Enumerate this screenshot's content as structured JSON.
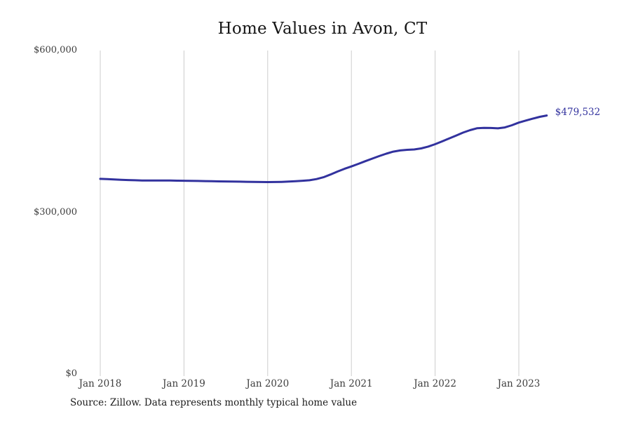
{
  "title": "Home Values in Avon, CT",
  "source_note": "Source: Zillow. Data represents monthly typical home value",
  "colors": {
    "line": "#32329E",
    "grid": "#cccccc",
    "axis_text": "#3d3d3d",
    "title_text": "#161616",
    "end_label_text": "#32329E",
    "background": "#ffffff"
  },
  "chart_data": {
    "type": "line",
    "title": "Home Values in Avon, CT",
    "xlabel": "",
    "ylabel": "",
    "ylim": [
      0,
      600000
    ],
    "grid": "vertical-only",
    "legend": "none",
    "x_tick_labels": [
      "Jan 2018",
      "Jan 2019",
      "Jan 2020",
      "Jan 2021",
      "Jan 2022",
      "Jan 2023"
    ],
    "y_ticks": [
      {
        "label": "$0",
        "value": 0
      },
      {
        "label": "$300,000",
        "value": 300000
      },
      {
        "label": "$600,000",
        "value": 600000
      }
    ],
    "end_annotation": {
      "label": "$479,532",
      "value": 479532
    },
    "series": [
      {
        "name": "Monthly typical home value",
        "x": [
          "2018-01",
          "2018-02",
          "2018-03",
          "2018-04",
          "2018-05",
          "2018-06",
          "2018-07",
          "2018-08",
          "2018-09",
          "2018-10",
          "2018-11",
          "2018-12",
          "2019-01",
          "2019-02",
          "2019-03",
          "2019-04",
          "2019-05",
          "2019-06",
          "2019-07",
          "2019-08",
          "2019-09",
          "2019-10",
          "2019-11",
          "2019-12",
          "2020-01",
          "2020-02",
          "2020-03",
          "2020-04",
          "2020-05",
          "2020-06",
          "2020-07",
          "2020-08",
          "2020-09",
          "2020-10",
          "2020-11",
          "2020-12",
          "2021-01",
          "2021-02",
          "2021-03",
          "2021-04",
          "2021-05",
          "2021-06",
          "2021-07",
          "2021-08",
          "2021-09",
          "2021-10",
          "2021-11",
          "2021-12",
          "2022-01",
          "2022-02",
          "2022-03",
          "2022-04",
          "2022-05",
          "2022-06",
          "2022-07",
          "2022-08",
          "2022-09",
          "2022-10",
          "2022-11",
          "2022-12",
          "2023-01",
          "2023-02",
          "2023-03",
          "2023-04",
          "2023-05"
        ],
        "values": [
          362000,
          361400,
          360800,
          360200,
          359700,
          359300,
          359000,
          358900,
          358900,
          358900,
          358800,
          358600,
          358500,
          358200,
          358000,
          357800,
          357500,
          357300,
          357100,
          356900,
          356700,
          356500,
          356300,
          356100,
          356000,
          356100,
          356400,
          356900,
          357600,
          358400,
          359400,
          361500,
          365000,
          370000,
          375500,
          380500,
          385000,
          389800,
          394700,
          399600,
          404300,
          408700,
          412500,
          414600,
          415800,
          416500,
          418400,
          421800,
          426200,
          431400,
          436800,
          442300,
          447700,
          452300,
          455800,
          456600,
          456300,
          455700,
          457400,
          461400,
          466300,
          470100,
          473600,
          477000,
          479532
        ]
      }
    ]
  }
}
